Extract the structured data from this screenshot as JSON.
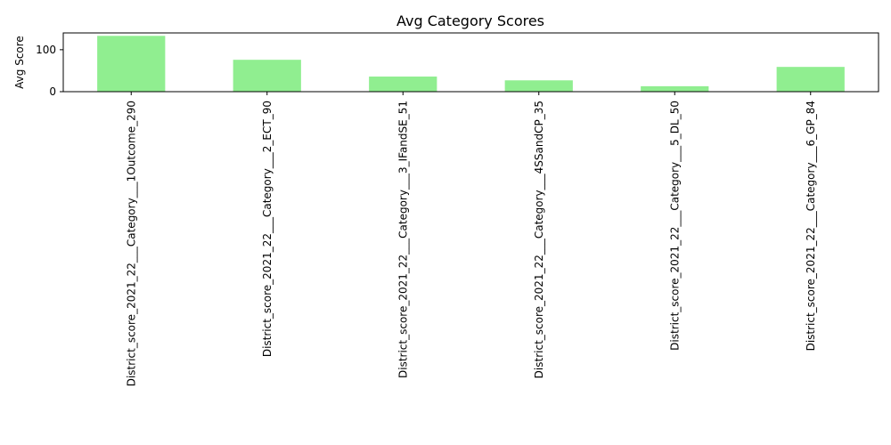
{
  "chart_data": {
    "type": "bar",
    "title": "Avg Category Scores",
    "xlabel": "",
    "ylabel": "Avg Score",
    "categories": [
      "District_score_2021_22___Category___1Outcome_290",
      "District_score_2021_22___Category___2_ECT_90",
      "District_score_2021_22___Category___3_IFandSE_51",
      "District_score_2021_22___Category___4SSandCP_35",
      "District_score_2021_22___Category___5_DL_50",
      "District_score_2021_22___Category___6_GP_84"
    ],
    "values": [
      133,
      76,
      36,
      27,
      13,
      59
    ],
    "ylim": [
      0,
      140
    ],
    "yticks": [
      0,
      100
    ],
    "bar_color": "#90ee90",
    "grid": false,
    "legend": "none"
  }
}
